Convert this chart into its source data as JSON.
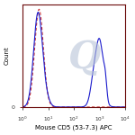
{
  "title": "",
  "xlabel": "Mouse CD5 (53-7.3) APC",
  "ylabel": "Count",
  "xlim_log": [
    1.0,
    10000
  ],
  "ylim": [
    0,
    1.05
  ],
  "background_color": "#ffffff",
  "plot_bg_color": "#ffffff",
  "watermark": "Q",
  "solid_line_color": "#1a1acc",
  "dashed_line_color": "#cc3333",
  "border_color": "#6b0a0a",
  "figsize": [
    1.5,
    1.5
  ],
  "dpi": 100
}
